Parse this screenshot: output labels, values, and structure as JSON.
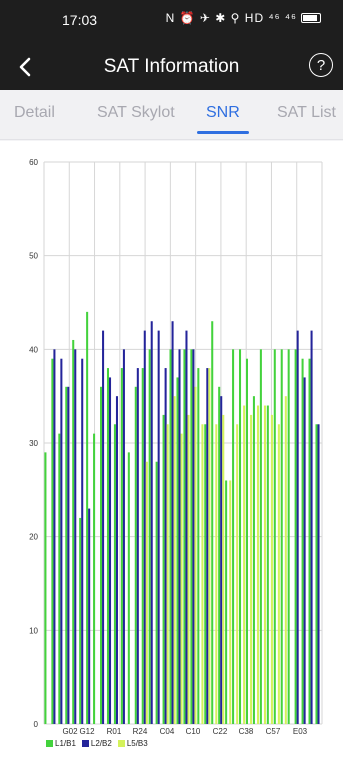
{
  "status_bar": {
    "time": "17:03",
    "icons_text": "N ⏰ ✈ ✱ ⚲ HD ⁴⁶ ⁴⁶"
  },
  "app_bar": {
    "title": "SAT Information",
    "back_icon": "chevron-left-icon",
    "help_icon": "help-circle-icon",
    "help_glyph": "?"
  },
  "tabs": [
    {
      "label": "Detail",
      "active": false
    },
    {
      "label": "SAT Skylot",
      "active": false
    },
    {
      "label": "SNR",
      "active": true
    },
    {
      "label": "SAT List",
      "active": false
    }
  ],
  "colors": {
    "l1": "#43d23c",
    "l2": "#24249a",
    "l5": "#d4f25b",
    "grid": "#d6d6d6",
    "accent": "#2f6fe0"
  },
  "chart_data": {
    "type": "bar",
    "title": "",
    "ylim": [
      0,
      60
    ],
    "yticks": [
      0,
      10,
      20,
      30,
      40,
      50,
      60
    ],
    "x_tick_labels": [
      "G02",
      "G12",
      "R01",
      "R24",
      "C04",
      "C10",
      "C22",
      "C38",
      "C57",
      "E03"
    ],
    "legend": [
      {
        "name": "L1/B1",
        "color": "#43d23c"
      },
      {
        "name": "L2/B2",
        "color": "#24249a"
      },
      {
        "name": "L5/B3",
        "color": "#d4f25b"
      }
    ],
    "series": [
      {
        "name": "L1/B1",
        "values": [
          29,
          39,
          31,
          36,
          41,
          22,
          44,
          31,
          36,
          38,
          32,
          38,
          29,
          36,
          38,
          40,
          28,
          33,
          40,
          37,
          40,
          40,
          38,
          32,
          43,
          36,
          26,
          40,
          40,
          39,
          35,
          40,
          34,
          40,
          40,
          40,
          40,
          39,
          39,
          32
        ]
      },
      {
        "name": "L2/B2",
        "values": [
          0,
          40,
          39,
          36,
          40,
          39,
          23,
          0,
          42,
          37,
          35,
          40,
          0,
          38,
          42,
          43,
          42,
          38,
          43,
          40,
          42,
          40,
          0,
          38,
          0,
          35,
          0,
          0,
          0,
          0,
          0,
          0,
          0,
          0,
          0,
          0,
          42,
          37,
          42,
          32
        ]
      },
      {
        "name": "L5/B3",
        "values": [
          0,
          0,
          0,
          0,
          0,
          0,
          0,
          0,
          0,
          0,
          0,
          0,
          0,
          0,
          28,
          0,
          0,
          32,
          35,
          31,
          33,
          36,
          32,
          38,
          32,
          33,
          26,
          32,
          34,
          33,
          34,
          34,
          33,
          32,
          35,
          0,
          0,
          0,
          0,
          0
        ]
      }
    ]
  }
}
